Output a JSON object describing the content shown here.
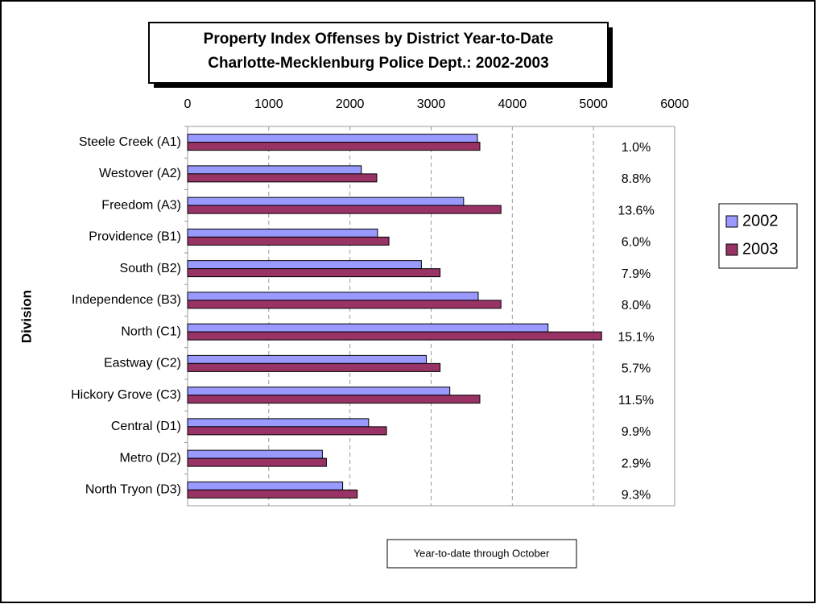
{
  "chart_data": {
    "type": "bar",
    "orientation": "horizontal",
    "title": "Property Index Offenses by District Year-to-Date",
    "subtitle": "Charlotte-Mecklenburg Police Dept.:  2002-2003",
    "y_label": "Division",
    "note": "Year-to-date through October",
    "categories": [
      "Steele Creek (A1)",
      "Westover (A2)",
      "Freedom (A3)",
      "Providence (B1)",
      "South (B2)",
      "Independence (B3)",
      "North (C1)",
      "Eastway (C2)",
      "Hickory Grove (C3)",
      "Central (D1)",
      "Metro (D2)",
      "North Tryon (D3)"
    ],
    "series": [
      {
        "name": "2002",
        "color": "#9999ff",
        "values": [
          3570,
          2140,
          3400,
          2340,
          2880,
          3580,
          4440,
          2940,
          3230,
          2230,
          1660,
          1910
        ]
      },
      {
        "name": "2003",
        "color": "#993366",
        "values": [
          3600,
          2330,
          3860,
          2480,
          3110,
          3860,
          5100,
          3110,
          3600,
          2450,
          1710,
          2090
        ]
      }
    ],
    "change_labels": [
      "1.0%",
      "8.8%",
      "13.6%",
      "6.0%",
      "7.9%",
      "8.0%",
      "15.1%",
      "5.7%",
      "11.5%",
      "9.9%",
      "2.9%",
      "9.3%"
    ],
    "xlim": [
      0,
      6000
    ],
    "xticks": [
      0,
      1000,
      2000,
      3000,
      4000,
      5000,
      6000
    ],
    "grid": true,
    "legend": "right"
  }
}
